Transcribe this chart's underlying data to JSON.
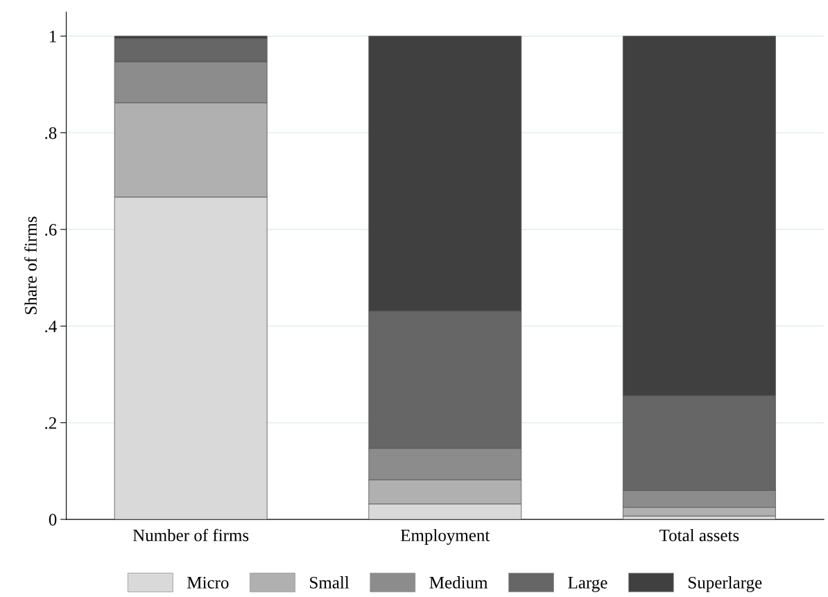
{
  "chart_data": {
    "type": "bar",
    "stacked": true,
    "ylabel": "Share of firms",
    "categories": [
      "Number of firms",
      "Employment",
      "Total assets"
    ],
    "series": [
      {
        "name": "Micro",
        "color": "#d9d9d9",
        "values": [
          0.667,
          0.032,
          0.007
        ]
      },
      {
        "name": "Small",
        "color": "#b0b0b0",
        "values": [
          0.195,
          0.05,
          0.018
        ]
      },
      {
        "name": "Medium",
        "color": "#8c8c8c",
        "values": [
          0.085,
          0.065,
          0.035
        ]
      },
      {
        "name": "Large",
        "color": "#666666",
        "values": [
          0.048,
          0.284,
          0.196
        ]
      },
      {
        "name": "Superlarge",
        "color": "#404040",
        "values": [
          0.005,
          0.569,
          0.744
        ]
      }
    ],
    "ylim": [
      0,
      1.05
    ],
    "yticks": [
      0,
      {
        "value": 0.2,
        "label": ".2"
      },
      {
        "value": 0.4,
        "label": ".4"
      },
      {
        "value": 0.6,
        "label": ".6"
      },
      {
        "value": 0.8,
        "label": ".8"
      },
      1
    ],
    "grid": "y",
    "legend": "bottom"
  }
}
